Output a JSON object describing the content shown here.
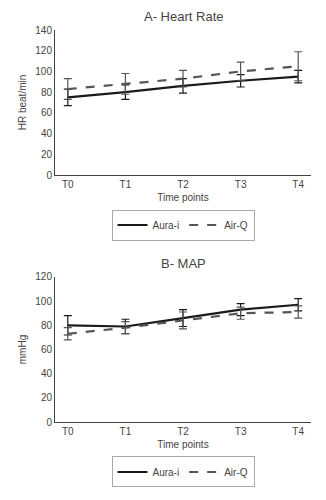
{
  "chart_data": [
    {
      "type": "line",
      "title": "A- Heart Rate",
      "x_label": "Time points",
      "y_label": "HR beat/min",
      "categories": [
        "T0",
        "T1",
        "T2",
        "T3",
        "T4"
      ],
      "series": [
        {
          "name": "Aura-i",
          "color": "#1a1a1a",
          "line_style": "solid",
          "values": [
            75,
            80,
            86,
            91,
            95
          ],
          "errors": [
            8,
            7,
            7,
            6,
            6
          ]
        },
        {
          "name": "Air-Q",
          "color": "#555555",
          "line_style": "dashed",
          "values": [
            83,
            88,
            93,
            100,
            105
          ],
          "errors": [
            10,
            10,
            8,
            9,
            14
          ]
        }
      ],
      "ylim": [
        0,
        140
      ],
      "yticks": [
        0,
        20,
        40,
        60,
        80,
        100,
        120,
        140
      ],
      "grid": false,
      "legend": "bottom"
    },
    {
      "type": "line",
      "title": "B- MAP",
      "x_label": "Time points",
      "y_label": "mmHg",
      "categories": [
        "T0",
        "T1",
        "T2",
        "T3",
        "T4"
      ],
      "series": [
        {
          "name": "Aura-i",
          "color": "#1a1a1a",
          "line_style": "solid",
          "values": [
            80,
            79,
            86,
            93,
            97
          ],
          "errors": [
            8,
            6,
            7,
            5,
            5
          ]
        },
        {
          "name": "Air-Q",
          "color": "#555555",
          "line_style": "dashed",
          "values": [
            73,
            78,
            84,
            90,
            91
          ],
          "errors": [
            5,
            5,
            7,
            5,
            5
          ]
        }
      ],
      "ylim": [
        0,
        120
      ],
      "yticks": [
        0,
        20,
        40,
        60,
        80,
        100,
        120
      ],
      "grid": false,
      "legend": "bottom"
    }
  ]
}
